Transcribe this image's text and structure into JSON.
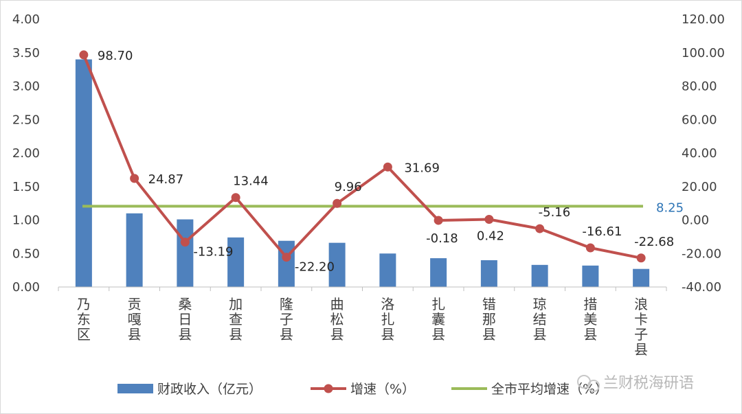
{
  "chart_data": {
    "type": "bar",
    "categories": [
      "乃东区",
      "贡嘎县",
      "桑日县",
      "加查县",
      "隆子县",
      "曲松县",
      "洛扎县",
      "扎囊县",
      "错那县",
      "琼结县",
      "措美县",
      "浪卡子县"
    ],
    "series": [
      {
        "name": "财政收入（亿元）",
        "type": "bar",
        "axis": "left",
        "color": "#4f81bd",
        "values": [
          3.4,
          1.1,
          1.01,
          0.74,
          0.69,
          0.66,
          0.5,
          0.43,
          0.4,
          0.33,
          0.32,
          0.27
        ]
      },
      {
        "name": "增速（%）",
        "type": "line",
        "axis": "right",
        "color": "#c0504d",
        "values": [
          98.7,
          24.87,
          -13.19,
          13.44,
          -22.2,
          9.96,
          31.69,
          -0.18,
          0.42,
          -5.16,
          -16.61,
          -22.68
        ],
        "labels": [
          "98.70",
          "24.87",
          "-13.19",
          "13.44",
          "-22.20",
          "9.96",
          "31.69",
          "-0.18",
          "0.42",
          "-5.16",
          "-16.61",
          "-22.68"
        ]
      },
      {
        "name": "全市平均增速（%）",
        "type": "line",
        "axis": "right",
        "color": "#9bbb59",
        "value": 8.25,
        "label": "8.25",
        "label_color": "#2e75b6"
      }
    ],
    "y_left": {
      "ylim": [
        0,
        4
      ],
      "ticks": [
        "0.00",
        "0.50",
        "1.00",
        "1.50",
        "2.00",
        "2.50",
        "3.00",
        "3.50",
        "4.00"
      ]
    },
    "y_right": {
      "ylim": [
        -40,
        120
      ],
      "ticks": [
        "-40.00",
        "-20.00",
        "0.00",
        "20.00",
        "40.00",
        "60.00",
        "80.00",
        "100.00",
        "120.00"
      ]
    },
    "legend_position": "bottom",
    "grid": false,
    "watermark": "兰财税海研语"
  }
}
